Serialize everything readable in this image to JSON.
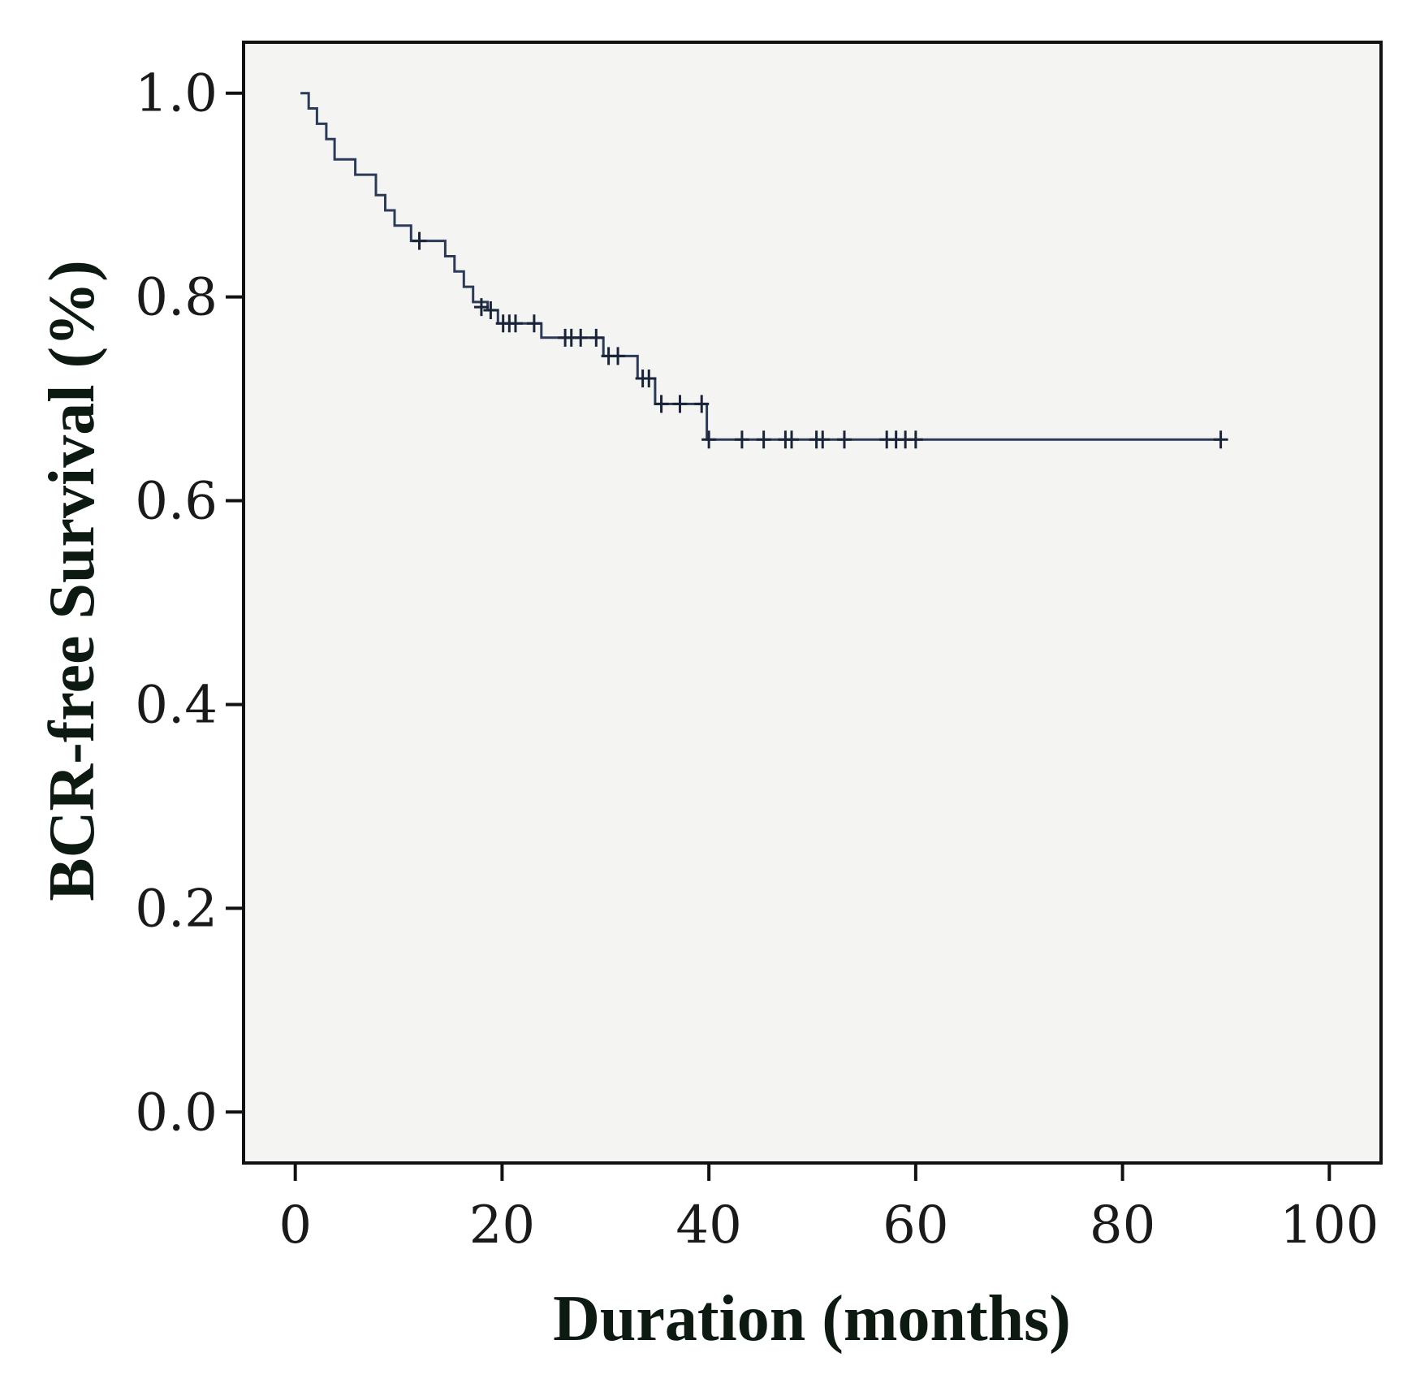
{
  "chart_data": {
    "type": "line",
    "title": "",
    "xlabel": "Duration (months)",
    "ylabel": "BCR-free Survival (%)",
    "xlim": [
      -5,
      105
    ],
    "ylim": [
      -0.05,
      1.05
    ],
    "xticks": [
      "0",
      "20",
      "40",
      "60",
      "80",
      "100"
    ],
    "yticks": [
      "0.0",
      "0.2",
      "0.4",
      "0.6",
      "0.8",
      "1.0"
    ],
    "xtick_values": [
      0,
      20,
      40,
      60,
      80,
      100
    ],
    "ytick_values": [
      0.0,
      0.2,
      0.4,
      0.6,
      0.8,
      1.0
    ],
    "grid": false,
    "legend": "none",
    "background": "#f4f5f2",
    "line_color": "#2c3a5a",
    "series": [
      {
        "step_points": [
          [
            0.5,
            1.0
          ],
          [
            1.3,
            1.0
          ],
          [
            1.3,
            0.985
          ],
          [
            2.1,
            0.985
          ],
          [
            2.1,
            0.97
          ],
          [
            3.0,
            0.97
          ],
          [
            3.0,
            0.955
          ],
          [
            3.8,
            0.955
          ],
          [
            3.8,
            0.935
          ],
          [
            5.8,
            0.935
          ],
          [
            5.8,
            0.92
          ],
          [
            7.8,
            0.92
          ],
          [
            7.8,
            0.9
          ],
          [
            8.7,
            0.9
          ],
          [
            8.7,
            0.885
          ],
          [
            9.6,
            0.885
          ],
          [
            9.6,
            0.87
          ],
          [
            11.2,
            0.87
          ],
          [
            11.2,
            0.855
          ],
          [
            14.5,
            0.855
          ],
          [
            14.5,
            0.84
          ],
          [
            15.4,
            0.84
          ],
          [
            15.4,
            0.825
          ],
          [
            16.3,
            0.825
          ],
          [
            16.3,
            0.81
          ],
          [
            17.2,
            0.81
          ],
          [
            17.2,
            0.795
          ],
          [
            18.6,
            0.795
          ],
          [
            18.6,
            0.787
          ],
          [
            19.6,
            0.787
          ],
          [
            19.6,
            0.774
          ],
          [
            23.8,
            0.774
          ],
          [
            23.8,
            0.76
          ],
          [
            29.8,
            0.76
          ],
          [
            29.8,
            0.742
          ],
          [
            33.1,
            0.742
          ],
          [
            33.1,
            0.72
          ],
          [
            34.8,
            0.72
          ],
          [
            34.8,
            0.695
          ],
          [
            39.8,
            0.695
          ],
          [
            39.8,
            0.66
          ],
          [
            89.5,
            0.66
          ]
        ],
        "censored": [
          [
            12.0,
            0.855
          ],
          [
            18.0,
            0.79
          ],
          [
            18.9,
            0.787
          ],
          [
            20.1,
            0.774
          ],
          [
            20.7,
            0.774
          ],
          [
            21.3,
            0.774
          ],
          [
            23.1,
            0.774
          ],
          [
            26.1,
            0.76
          ],
          [
            26.7,
            0.76
          ],
          [
            27.6,
            0.76
          ],
          [
            29.1,
            0.76
          ],
          [
            30.3,
            0.742
          ],
          [
            31.2,
            0.742
          ],
          [
            33.6,
            0.72
          ],
          [
            34.2,
            0.72
          ],
          [
            35.4,
            0.695
          ],
          [
            37.2,
            0.695
          ],
          [
            39.3,
            0.695
          ],
          [
            40.0,
            0.66
          ],
          [
            43.2,
            0.66
          ],
          [
            45.3,
            0.66
          ],
          [
            47.4,
            0.66
          ],
          [
            48.0,
            0.66
          ],
          [
            50.4,
            0.66
          ],
          [
            51.0,
            0.66
          ],
          [
            53.1,
            0.66
          ],
          [
            57.2,
            0.66
          ],
          [
            58.1,
            0.66
          ],
          [
            59.0,
            0.66
          ],
          [
            60.0,
            0.66
          ],
          [
            89.5,
            0.66
          ]
        ]
      }
    ]
  }
}
